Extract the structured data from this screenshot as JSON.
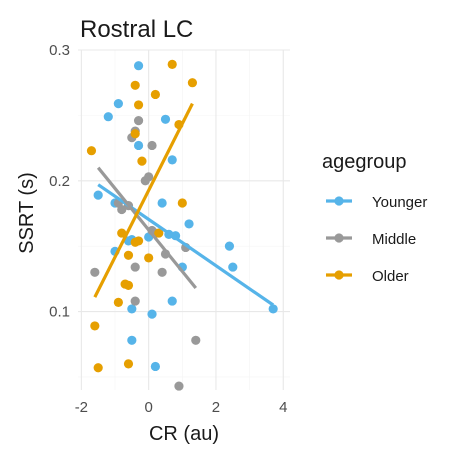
{
  "chart_data": {
    "type": "scatter",
    "title": "Rostral LC",
    "xlabel": "CR (au)",
    "ylabel": "SSRT (s)",
    "xlim": [
      -2.1,
      4.2
    ],
    "ylim": [
      0.04,
      0.3
    ],
    "x_ticks": [
      -2,
      0,
      2,
      4
    ],
    "y_ticks": [
      0.1,
      0.2,
      0.3
    ],
    "grid": true,
    "legend": {
      "title": "agegroup",
      "position": "right"
    },
    "series": [
      {
        "name": "Younger",
        "color": "#56B4E9",
        "points": [
          [
            -0.3,
            0.288
          ],
          [
            -0.9,
            0.259
          ],
          [
            -1.2,
            0.249
          ],
          [
            0.5,
            0.247
          ],
          [
            -0.3,
            0.227
          ],
          [
            0.7,
            0.216
          ],
          [
            -1.5,
            0.189
          ],
          [
            0.4,
            0.183
          ],
          [
            -1.0,
            0.183
          ],
          [
            1.2,
            0.167
          ],
          [
            0.0,
            0.157
          ],
          [
            0.6,
            0.159
          ],
          [
            0.8,
            0.158
          ],
          [
            -0.5,
            0.155
          ],
          [
            -0.6,
            0.154
          ],
          [
            -1.0,
            0.146
          ],
          [
            1.0,
            0.134
          ],
          [
            2.4,
            0.15
          ],
          [
            2.5,
            0.134
          ],
          [
            3.7,
            0.102
          ],
          [
            -0.5,
            0.102
          ],
          [
            0.7,
            0.108
          ],
          [
            0.1,
            0.098
          ],
          [
            -0.5,
            0.078
          ],
          [
            0.2,
            0.058
          ]
        ],
        "fit": {
          "x": [
            -1.5,
            3.7
          ],
          "y": [
            0.197,
            0.105
          ]
        }
      },
      {
        "name": "Middle",
        "color": "#999999",
        "points": [
          [
            -0.3,
            0.246
          ],
          [
            -0.4,
            0.238
          ],
          [
            -0.5,
            0.233
          ],
          [
            0.1,
            0.227
          ],
          [
            -0.1,
            0.2
          ],
          [
            0.0,
            0.203
          ],
          [
            -0.9,
            0.183
          ],
          [
            -0.6,
            0.181
          ],
          [
            -0.8,
            0.178
          ],
          [
            0.1,
            0.162
          ],
          [
            0.2,
            0.16
          ],
          [
            0.5,
            0.144
          ],
          [
            1.1,
            0.149
          ],
          [
            -0.4,
            0.134
          ],
          [
            0.4,
            0.13
          ],
          [
            -1.6,
            0.13
          ],
          [
            -0.4,
            0.108
          ],
          [
            1.4,
            0.078
          ],
          [
            0.9,
            0.043
          ]
        ],
        "fit": {
          "x": [
            -1.5,
            1.4
          ],
          "y": [
            0.21,
            0.118
          ]
        }
      },
      {
        "name": "Older",
        "color": "#E69F00",
        "points": [
          [
            0.7,
            0.289
          ],
          [
            1.3,
            0.275
          ],
          [
            -0.4,
            0.273
          ],
          [
            0.2,
            0.266
          ],
          [
            -0.3,
            0.258
          ],
          [
            -0.4,
            0.236
          ],
          [
            0.9,
            0.243
          ],
          [
            -0.2,
            0.215
          ],
          [
            -1.7,
            0.223
          ],
          [
            1.0,
            0.183
          ],
          [
            -0.3,
            0.154
          ],
          [
            0.3,
            0.16
          ],
          [
            -0.8,
            0.16
          ],
          [
            -0.4,
            0.153
          ],
          [
            -0.6,
            0.143
          ],
          [
            0.0,
            0.141
          ],
          [
            -0.7,
            0.121
          ],
          [
            -0.6,
            0.12
          ],
          [
            -0.9,
            0.107
          ],
          [
            -1.6,
            0.089
          ],
          [
            -0.6,
            0.06
          ],
          [
            -1.5,
            0.057
          ]
        ],
        "fit": {
          "x": [
            -1.6,
            1.3
          ],
          "y": [
            0.111,
            0.259
          ]
        }
      }
    ]
  }
}
